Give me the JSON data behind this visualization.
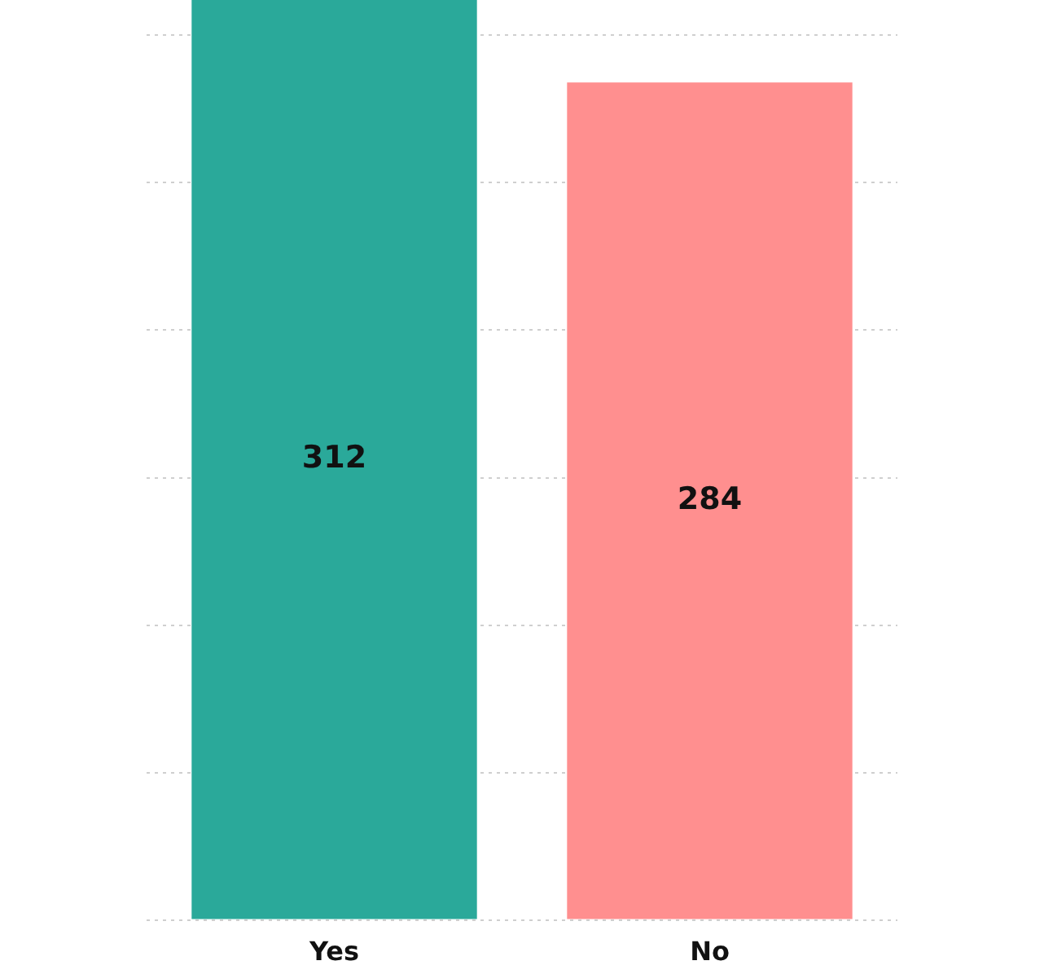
{
  "chart_data": {
    "type": "bar",
    "categories": [
      "Yes",
      "No"
    ],
    "values": [
      312,
      284
    ],
    "colors": [
      "#2aa99a",
      "#ff8f8f"
    ],
    "ylim": [
      0,
      312
    ],
    "yticks": [
      {
        "value": 0,
        "label": null
      },
      {
        "value": 50,
        "label": null
      },
      {
        "value": 100,
        "label": null
      },
      {
        "value": 150,
        "label": null
      },
      {
        "value": 200,
        "label": null
      },
      {
        "value": 250,
        "label": null
      },
      {
        "value": 300,
        "label": null
      }
    ],
    "grid": "y",
    "tick_labels": "x",
    "data_labels": true,
    "legend": false
  }
}
